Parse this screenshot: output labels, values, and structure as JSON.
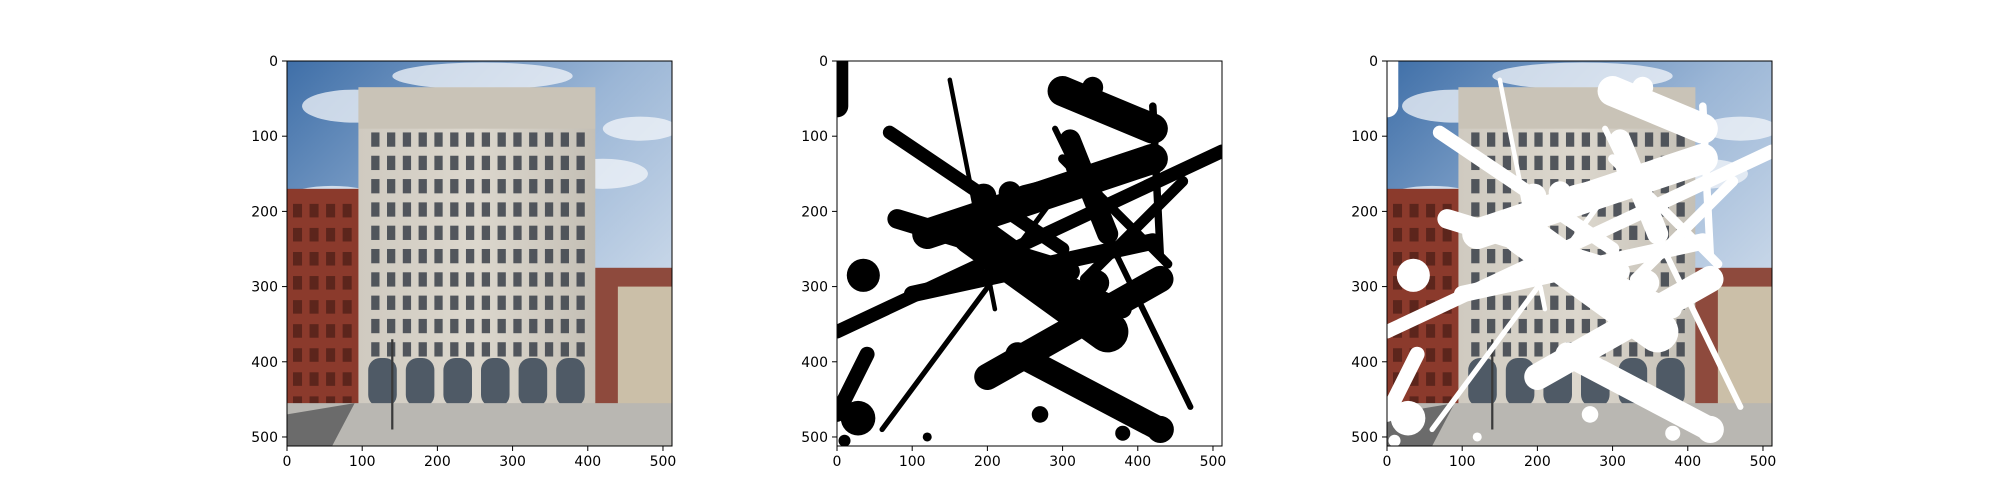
{
  "panels": [
    {
      "id": "original-photo",
      "x_ticks": [
        "0",
        "100",
        "200",
        "300",
        "400",
        "500"
      ],
      "y_ticks": [
        "0",
        "100",
        "200",
        "300",
        "400",
        "500"
      ]
    },
    {
      "id": "mask",
      "x_ticks": [
        "0",
        "100",
        "200",
        "300",
        "400",
        "500"
      ],
      "y_ticks": [
        "0",
        "100",
        "200",
        "300",
        "400",
        "500"
      ]
    },
    {
      "id": "masked-photo",
      "x_ticks": [
        "0",
        "100",
        "200",
        "300",
        "400",
        "500"
      ],
      "y_ticks": [
        "0",
        "100",
        "200",
        "300",
        "400",
        "500"
      ]
    }
  ],
  "colors": {
    "sky_top": "#3f6fa8",
    "sky_mid": "#9bb6d6",
    "sky_light": "#dfe8f2",
    "building_facade": "#d7d2c8",
    "building_shadow": "#bdb7ac",
    "brick": "#8b3a2c",
    "window_dark": "#3a3f49",
    "sidewalk": "#b9b7b2",
    "mask_stroke": "#000000",
    "overlay_stroke": "#ffffff"
  }
}
